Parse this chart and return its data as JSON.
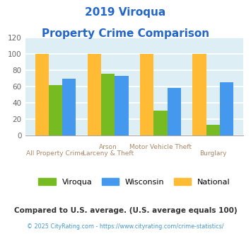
{
  "title_line1": "2019 Viroqua",
  "title_line2": "Property Crime Comparison",
  "title_color": "#2266cc",
  "cat_labels_top": [
    "",
    "Arson",
    "Motor Vehicle Theft",
    ""
  ],
  "cat_labels_bot": [
    "All Property Crime",
    "Larceny & Theft",
    "",
    "Burglary"
  ],
  "viroqua": [
    62,
    76,
    31,
    13
  ],
  "wisconsin": [
    70,
    73,
    58,
    65
  ],
  "national": [
    100,
    100,
    100,
    100
  ],
  "viroqua_color": "#77bb22",
  "wisconsin_color": "#4499ee",
  "national_color": "#ffbb33",
  "ylim": [
    0,
    120
  ],
  "yticks": [
    0,
    20,
    40,
    60,
    80,
    100,
    120
  ],
  "bar_width": 0.26,
  "plot_bg_color": "#ddeef5",
  "fig_bg_color": "#ffffff",
  "grid_color": "#ffffff",
  "legend_labels": [
    "Viroqua",
    "Wisconsin",
    "National"
  ],
  "footnote1": "Compared to U.S. average. (U.S. average equals 100)",
  "footnote2": "© 2025 CityRating.com - https://www.cityrating.com/crime-statistics/",
  "footnote1_color": "#333333",
  "footnote2_color": "#4499cc",
  "xtick_color": "#aa8866"
}
